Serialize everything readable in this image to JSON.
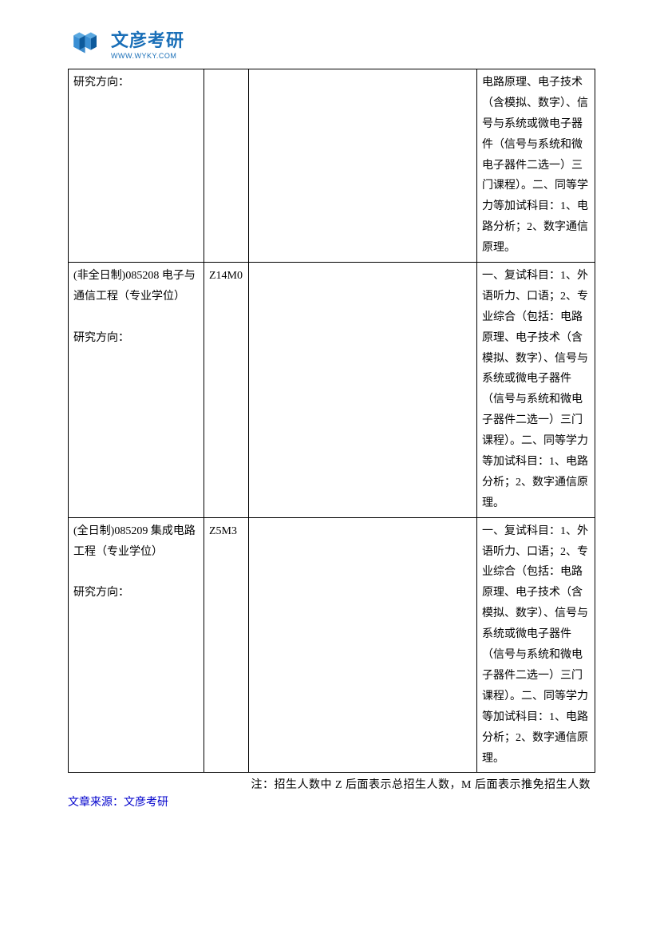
{
  "logo": {
    "title": "文彦考研",
    "url": "WWW.WYKY.COM",
    "icon_color_dark": "#0d5a9c",
    "icon_color_light": "#3a8fd4"
  },
  "table": {
    "rows": [
      {
        "col1": "研究方向：",
        "col2": "",
        "col3": "",
        "col4": "电路原理、电子技术（含模拟、数字）、信号与系统或微电子器件（信号与系统和微电子器件二选一）三门课程）。二、同等学力等加试科目：1、电路分析；2、数字通信原理。"
      },
      {
        "col1": "(非全日制)085208 电子与通信工程（专业学位）\n\n研究方向：",
        "col2": "Z14M0",
        "col3": "",
        "col4": "一、复试科目：1、外语听力、口语；2、专业综合（包括：电路原理、电子技术（含模拟、数字）、信号与系统或微电子器件（信号与系统和微电子器件二选一）三门课程）。二、同等学力等加试科目：1、电路分析；2、数字通信原理。"
      },
      {
        "col1": "(全日制)085209 集成电路工程（专业学位）\n\n研究方向：",
        "col2": "Z5M3",
        "col3": "",
        "col4": "一、复试科目：1、外语听力、口语；2、专业综合（包括：电路原理、电子技术（含模拟、数字）、信号与系统或微电子器件（信号与系统和微电子器件二选一）三门课程）。二、同等学力等加试科目：1、电路分析；2、数字通信原理。"
      }
    ]
  },
  "note": "注：招生人数中 Z 后面表示总招生人数，M 后面表示推免招生人数",
  "source": "文章来源：文彦考研"
}
